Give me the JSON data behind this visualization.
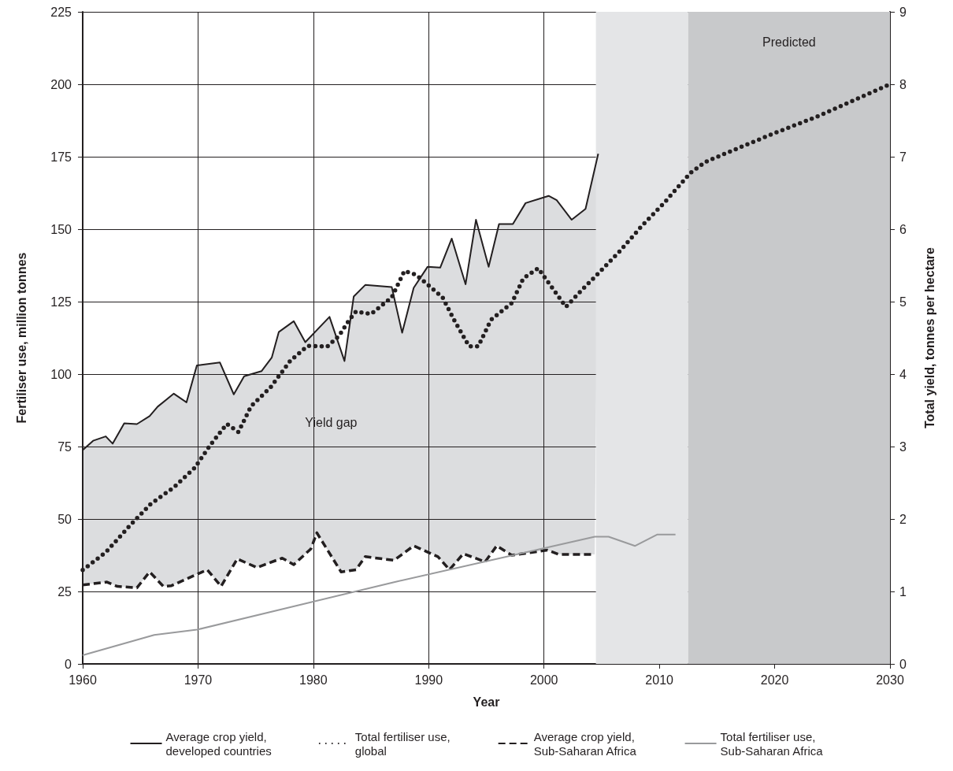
{
  "chart_data": {
    "type": "line",
    "xlabel": "Year",
    "ylabel": "Fertiliser use, million tonnes",
    "y2label": "Total yield, tonnes per hectare",
    "xlim": [
      1960,
      2030
    ],
    "xticks": [
      1960,
      1970,
      1980,
      1990,
      2000,
      2010,
      2020,
      2030
    ],
    "ylim": [
      0,
      225
    ],
    "yticks": [
      0,
      25,
      50,
      75,
      100,
      125,
      150,
      175,
      200,
      225
    ],
    "y2lim": [
      0,
      9
    ],
    "y2ticks": [
      0,
      1,
      2,
      3,
      4,
      5,
      6,
      7,
      8,
      9
    ],
    "grid": true,
    "legend": "bottom",
    "marker": "none",
    "series": [
      {
        "name": "Average crop yield,\ndeveloped countries",
        "color": "#231f20",
        "axis": "y2",
        "line_style": "solid",
        "x": [
          1960,
          1960.9,
          1962,
          1962.6,
          1963.6,
          1964.7,
          1965.8,
          1966.5,
          1967.9,
          1969,
          1969.9,
          1971.9,
          1973.1,
          1974,
          1975.5,
          1976.4,
          1977,
          1978.3,
          1979.3,
          1981.4,
          1982.7,
          1983.5,
          1984.5,
          1986.8,
          1987.7,
          1988.7,
          1989.9,
          1991,
          1992,
          1993.2,
          1994.1,
          1995.2,
          1996.1,
          1997.3,
          1998.4,
          2000.4,
          2001.1,
          2002.4,
          2003.6,
          2004.7
        ],
        "values": [
          2.95,
          3.08,
          3.14,
          3.04,
          3.32,
          3.31,
          3.42,
          3.55,
          3.73,
          3.61,
          4.12,
          4.16,
          3.72,
          3.97,
          4.04,
          4.23,
          4.58,
          4.73,
          4.44,
          4.79,
          4.18,
          5.07,
          5.23,
          5.2,
          4.57,
          5.19,
          5.48,
          5.47,
          5.87,
          5.24,
          6.13,
          5.48,
          6.07,
          6.07,
          6.36,
          6.46,
          6.4,
          6.13,
          6.28,
          7.04
        ]
      },
      {
        "name": "Total fertiliser use,\nglobal",
        "color": "#231f20",
        "line_style": "dotted",
        "x": [
          1960,
          1962,
          1964.2,
          1965.9,
          1967.9,
          1969.7,
          1971.1,
          1972.5,
          1973.5,
          1974.6,
          1976.3,
          1978,
          1979.5,
          1981.2,
          1982.2,
          1983.1,
          1983.7,
          1985,
          1986.8,
          1987.9,
          1988.9,
          1991.2,
          1992.2,
          1993.5,
          1994.3,
          1995.4,
          1997.2,
          1998.2,
          1999.5,
          2000.6,
          2001.9,
          2003.3,
          2004.6,
          2006.5,
          2008.5,
          2010.4,
          2012.7,
          2014,
          2016.2,
          2019.9,
          2023.9,
          2030
        ],
        "values": [
          32.4,
          38.5,
          48.2,
          55.2,
          60.9,
          67.6,
          75.7,
          82.8,
          80,
          88.9,
          95.5,
          104.6,
          109.7,
          109.5,
          113.1,
          118.6,
          121.6,
          120.7,
          126.5,
          135.6,
          134.3,
          126.5,
          118.7,
          109.6,
          109.6,
          118.7,
          124.5,
          133,
          136.5,
          130.4,
          123.2,
          129.1,
          134.3,
          142.1,
          151.2,
          159,
          169.4,
          173.2,
          176.9,
          183,
          189.2,
          200
        ]
      },
      {
        "name": "Average crop yield,\nSub-Saharan Africa",
        "color": "#231f20",
        "axis": "y2",
        "line_style": "dashed",
        "x": [
          1960,
          1962.1,
          1963,
          1964.7,
          1965.8,
          1967,
          1967.7,
          1970.8,
          1972,
          1973.4,
          1975.1,
          1977.3,
          1978.3,
          1979.8,
          1980.3,
          1982.4,
          1983.7,
          1984.5,
          1987,
          1988.7,
          1990.8,
          1991.8,
          1993,
          1994.9,
          1995.9,
          1997.2,
          2000.3,
          2001.3,
          2004.4
        ],
        "values": [
          1.09,
          1.13,
          1.07,
          1.05,
          1.27,
          1.07,
          1.08,
          1.3,
          1.07,
          1.45,
          1.33,
          1.46,
          1.37,
          1.59,
          1.81,
          1.27,
          1.3,
          1.48,
          1.43,
          1.63,
          1.48,
          1.3,
          1.52,
          1.41,
          1.63,
          1.5,
          1.57,
          1.51,
          1.51
        ]
      },
      {
        "name": "Total fertiliser use,\nSub-Saharan Africa",
        "color": "#999a9c",
        "line_style": "solid",
        "x": [
          1960,
          1966.2,
          1969.9,
          1987,
          2004.4,
          2005.6,
          2007.9,
          2009.8,
          2011.4
        ],
        "values": [
          3,
          10,
          11.8,
          28.2,
          43.9,
          43.9,
          40.7,
          44.6,
          44.6
        ]
      }
    ],
    "bands": [
      {
        "axis": "x",
        "from": 2004.5,
        "to": 2012.5,
        "color": "#e4e5e7"
      },
      {
        "axis": "x",
        "from": 2012.5,
        "to": 2030,
        "label": "Predicted",
        "color": "#c8c9cb"
      }
    ],
    "annotations": [
      "Yield gap"
    ]
  }
}
